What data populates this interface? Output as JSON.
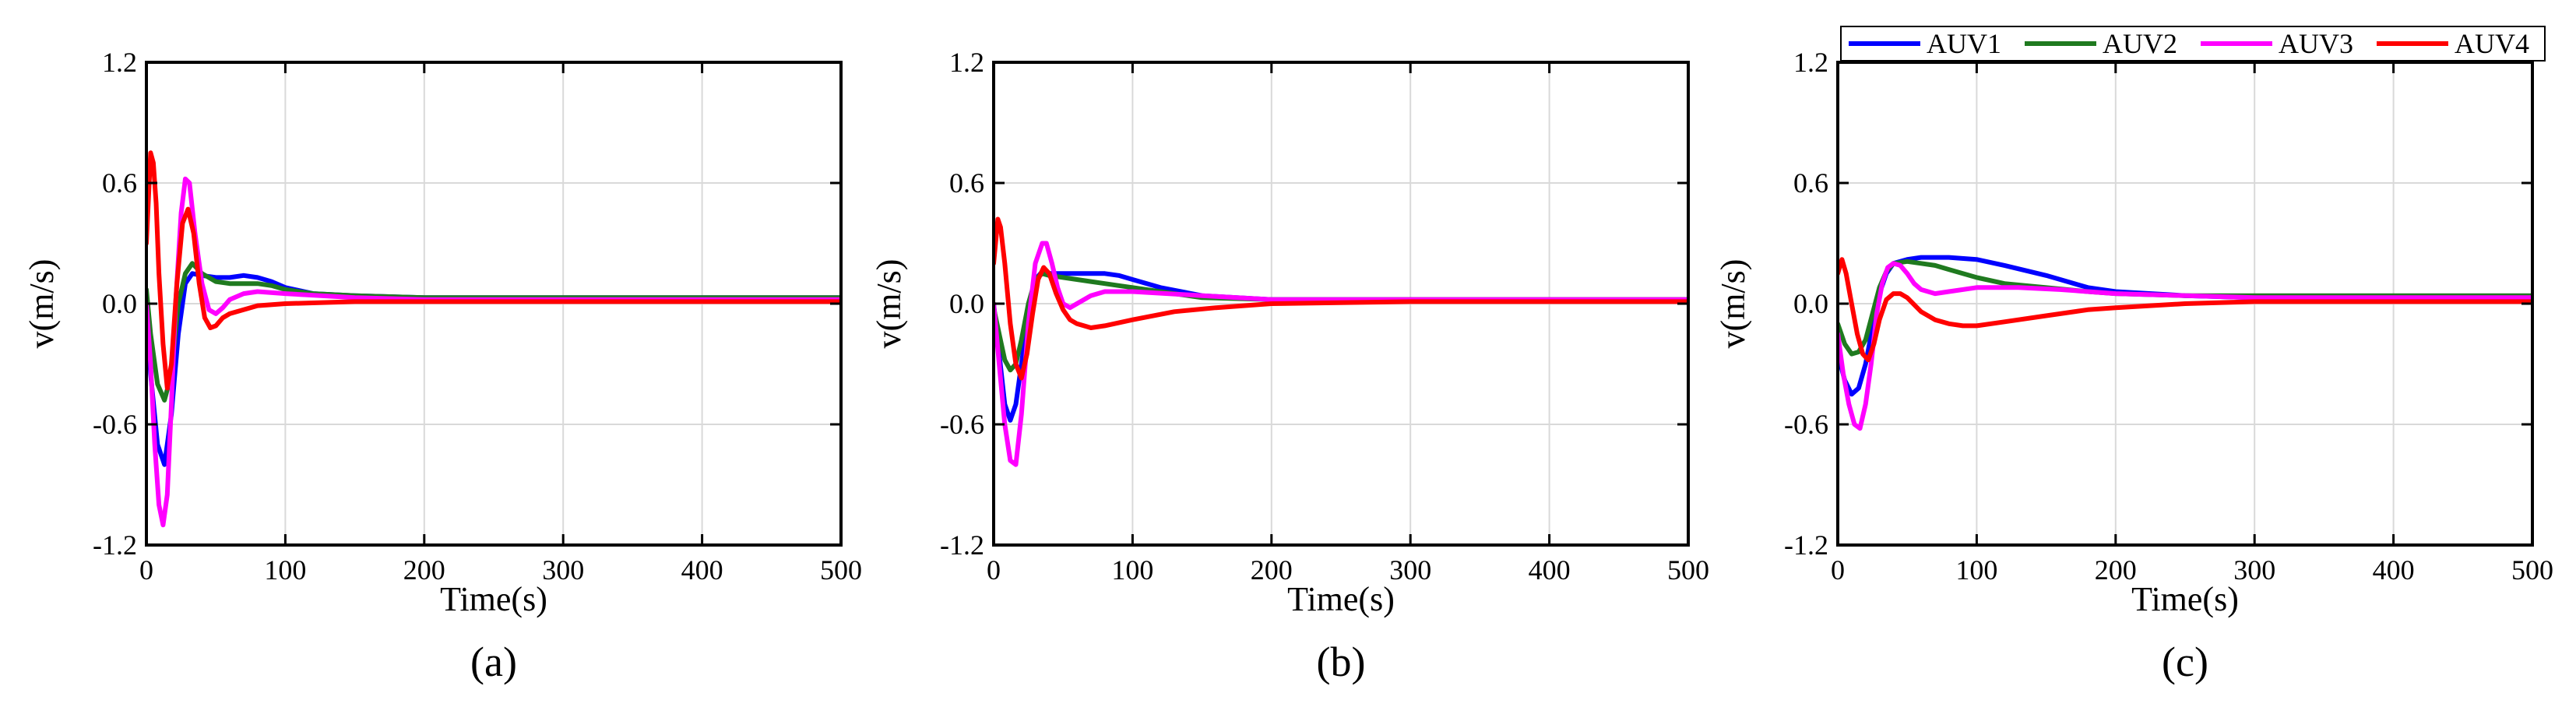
{
  "colors": {
    "AUV1": "#0000ff",
    "AUV2": "#1f7a1f",
    "AUV3": "#ff00ff",
    "AUV4": "#ff0000",
    "grid": "#d9d9d9",
    "axis": "#000000"
  },
  "chart_data": [
    {
      "type": "line",
      "panel_label": "(a)",
      "xlabel": "Time(s)",
      "ylabel": "v(m/s)",
      "xlim": [
        0,
        500
      ],
      "ylim": [
        -1.2,
        1.2
      ],
      "xticks": [
        "0",
        "100",
        "200",
        "300",
        "400",
        "500"
      ],
      "yticks": [
        "1.2",
        "0.6",
        "0.0",
        "-0.6",
        "-1.2"
      ],
      "grid": true,
      "legend": null,
      "series": [
        {
          "name": "AUV1",
          "x": [
            0,
            3,
            8,
            13,
            18,
            23,
            28,
            33,
            40,
            50,
            60,
            70,
            80,
            90,
            100,
            120,
            150,
            200,
            300,
            400,
            500
          ],
          "y": [
            0.0,
            -0.35,
            -0.7,
            -0.8,
            -0.55,
            -0.15,
            0.1,
            0.15,
            0.14,
            0.13,
            0.13,
            0.14,
            0.13,
            0.11,
            0.08,
            0.05,
            0.04,
            0.03,
            0.03,
            0.03,
            0.03
          ]
        },
        {
          "name": "AUV2",
          "x": [
            0,
            3,
            8,
            13,
            18,
            23,
            28,
            33,
            40,
            50,
            60,
            70,
            80,
            90,
            100,
            120,
            150,
            200,
            300,
            400,
            500
          ],
          "y": [
            0.07,
            -0.15,
            -0.4,
            -0.48,
            -0.35,
            0.0,
            0.15,
            0.2,
            0.15,
            0.11,
            0.1,
            0.1,
            0.1,
            0.09,
            0.07,
            0.05,
            0.04,
            0.03,
            0.03,
            0.03,
            0.03
          ]
        },
        {
          "name": "AUV3",
          "x": [
            0,
            3,
            6,
            9,
            12,
            15,
            18,
            21,
            25,
            28,
            31,
            35,
            40,
            45,
            50,
            55,
            60,
            70,
            80,
            100,
            150,
            200,
            300,
            400,
            500
          ],
          "y": [
            0.0,
            -0.3,
            -0.7,
            -1.0,
            -1.1,
            -0.95,
            -0.5,
            0.0,
            0.45,
            0.62,
            0.6,
            0.35,
            0.1,
            -0.03,
            -0.05,
            -0.02,
            0.02,
            0.05,
            0.06,
            0.05,
            0.03,
            0.02,
            0.02,
            0.02,
            0.02
          ]
        },
        {
          "name": "AUV4",
          "x": [
            0,
            3,
            5,
            7,
            9,
            12,
            15,
            18,
            22,
            26,
            30,
            34,
            38,
            42,
            46,
            50,
            55,
            60,
            70,
            80,
            100,
            150,
            200,
            300,
            400,
            500
          ],
          "y": [
            0.3,
            0.75,
            0.7,
            0.5,
            0.15,
            -0.2,
            -0.42,
            -0.3,
            0.1,
            0.4,
            0.47,
            0.35,
            0.1,
            -0.07,
            -0.12,
            -0.11,
            -0.07,
            -0.05,
            -0.03,
            -0.01,
            0.0,
            0.01,
            0.01,
            0.01,
            0.01,
            0.01
          ]
        }
      ]
    },
    {
      "type": "line",
      "panel_label": "(b)",
      "xlabel": "Time(s)",
      "ylabel": "v(m/s)",
      "xlim": [
        0,
        500
      ],
      "ylim": [
        -1.2,
        1.2
      ],
      "xticks": [
        "0",
        "100",
        "200",
        "300",
        "400",
        "500"
      ],
      "yticks": [
        "1.2",
        "0.6",
        "0.0",
        "-0.6",
        "-1.2"
      ],
      "grid": true,
      "legend": null,
      "series": [
        {
          "name": "AUV1",
          "x": [
            0,
            4,
            8,
            12,
            16,
            20,
            25,
            30,
            35,
            40,
            50,
            60,
            70,
            80,
            90,
            100,
            120,
            150,
            200,
            300,
            400,
            500
          ],
          "y": [
            0.0,
            -0.25,
            -0.5,
            -0.58,
            -0.5,
            -0.3,
            -0.05,
            0.12,
            0.16,
            0.15,
            0.15,
            0.15,
            0.15,
            0.15,
            0.14,
            0.12,
            0.08,
            0.04,
            0.02,
            0.02,
            0.02,
            0.02
          ]
        },
        {
          "name": "AUV2",
          "x": [
            0,
            4,
            8,
            12,
            16,
            20,
            25,
            30,
            35,
            40,
            50,
            60,
            70,
            80,
            90,
            100,
            120,
            150,
            200,
            300,
            400,
            500
          ],
          "y": [
            -0.02,
            -0.15,
            -0.28,
            -0.33,
            -0.3,
            -0.18,
            0.0,
            0.12,
            0.15,
            0.14,
            0.13,
            0.12,
            0.11,
            0.1,
            0.09,
            0.08,
            0.06,
            0.03,
            0.02,
            0.02,
            0.02,
            0.02
          ]
        },
        {
          "name": "AUV3",
          "x": [
            0,
            4,
            8,
            12,
            16,
            20,
            25,
            30,
            35,
            38,
            42,
            46,
            50,
            55,
            60,
            70,
            80,
            100,
            150,
            200,
            300,
            400,
            500
          ],
          "y": [
            0.0,
            -0.3,
            -0.6,
            -0.78,
            -0.8,
            -0.55,
            -0.1,
            0.2,
            0.3,
            0.3,
            0.2,
            0.08,
            0.0,
            -0.02,
            0.0,
            0.04,
            0.06,
            0.06,
            0.04,
            0.02,
            0.02,
            0.02,
            0.02
          ]
        },
        {
          "name": "AUV4",
          "x": [
            0,
            3,
            5,
            8,
            12,
            16,
            20,
            24,
            28,
            32,
            36,
            40,
            45,
            50,
            55,
            60,
            70,
            80,
            100,
            130,
            160,
            200,
            300,
            400,
            500
          ],
          "y": [
            0.2,
            0.42,
            0.38,
            0.2,
            -0.1,
            -0.3,
            -0.37,
            -0.25,
            -0.05,
            0.12,
            0.18,
            0.15,
            0.05,
            -0.03,
            -0.08,
            -0.1,
            -0.12,
            -0.11,
            -0.08,
            -0.04,
            -0.02,
            0.0,
            0.01,
            0.01,
            0.01
          ]
        }
      ]
    },
    {
      "type": "line",
      "panel_label": "(c)",
      "xlabel": "Time(s)",
      "ylabel": "v(m/s)",
      "xlim": [
        0,
        500
      ],
      "ylim": [
        -1.2,
        1.2
      ],
      "xticks": [
        "0",
        "100",
        "200",
        "300",
        "400",
        "500"
      ],
      "yticks": [
        "1.2",
        "0.6",
        "0.0",
        "-0.6",
        "-1.2"
      ],
      "grid": true,
      "legend": "top",
      "series": [
        {
          "name": "AUV1",
          "x": [
            0,
            5,
            10,
            15,
            20,
            25,
            30,
            35,
            40,
            50,
            60,
            70,
            80,
            100,
            120,
            150,
            180,
            200,
            250,
            300,
            400,
            500
          ],
          "y": [
            -0.25,
            -0.38,
            -0.45,
            -0.42,
            -0.3,
            -0.12,
            0.05,
            0.15,
            0.2,
            0.22,
            0.23,
            0.23,
            0.23,
            0.22,
            0.19,
            0.14,
            0.08,
            0.06,
            0.04,
            0.03,
            0.03,
            0.03
          ]
        },
        {
          "name": "AUV2",
          "x": [
            0,
            5,
            10,
            15,
            20,
            25,
            30,
            35,
            40,
            50,
            60,
            70,
            80,
            100,
            120,
            150,
            180,
            200,
            250,
            300,
            400,
            500
          ],
          "y": [
            -0.1,
            -0.2,
            -0.25,
            -0.24,
            -0.18,
            -0.05,
            0.08,
            0.16,
            0.2,
            0.21,
            0.2,
            0.19,
            0.17,
            0.13,
            0.1,
            0.08,
            0.06,
            0.05,
            0.04,
            0.04,
            0.04,
            0.04
          ]
        },
        {
          "name": "AUV3",
          "x": [
            0,
            4,
            8,
            12,
            16,
            20,
            24,
            28,
            32,
            36,
            40,
            45,
            50,
            55,
            60,
            70,
            80,
            100,
            130,
            160,
            200,
            300,
            400,
            500
          ],
          "y": [
            -0.15,
            -0.35,
            -0.5,
            -0.6,
            -0.62,
            -0.5,
            -0.3,
            -0.05,
            0.1,
            0.18,
            0.2,
            0.19,
            0.15,
            0.1,
            0.07,
            0.05,
            0.06,
            0.08,
            0.08,
            0.07,
            0.05,
            0.03,
            0.03,
            0.03
          ]
        },
        {
          "name": "AUV4",
          "x": [
            0,
            3,
            6,
            10,
            14,
            18,
            22,
            26,
            30,
            35,
            40,
            45,
            50,
            60,
            70,
            80,
            90,
            100,
            120,
            150,
            180,
            200,
            250,
            300,
            400,
            500
          ],
          "y": [
            0.15,
            0.22,
            0.15,
            0.0,
            -0.15,
            -0.25,
            -0.28,
            -0.2,
            -0.08,
            0.02,
            0.05,
            0.05,
            0.03,
            -0.04,
            -0.08,
            -0.1,
            -0.11,
            -0.11,
            -0.09,
            -0.06,
            -0.03,
            -0.02,
            0.0,
            0.01,
            0.01,
            0.01
          ]
        }
      ]
    }
  ]
}
